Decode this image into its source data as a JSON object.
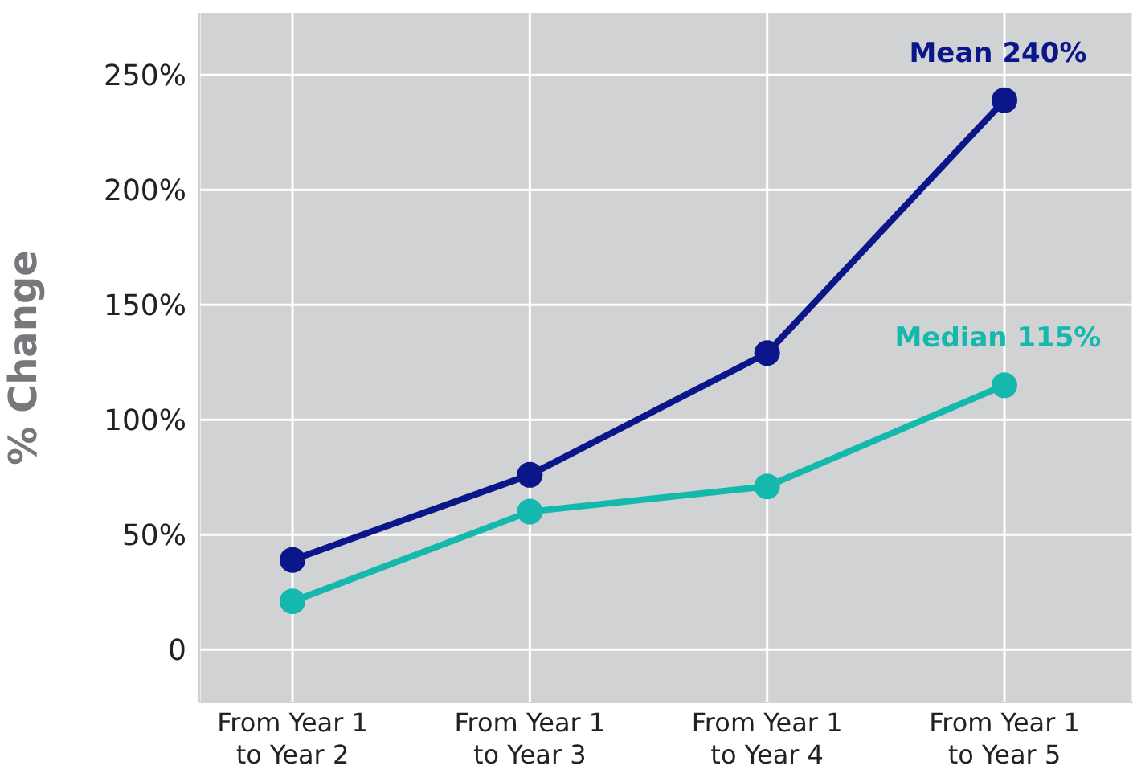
{
  "chart_data": {
    "type": "line",
    "ylabel": "% Change",
    "categories": [
      "From Year 1\nto Year 2",
      "From Year 1\nto Year 3",
      "From Year 1\nto Year 4",
      "From Year 1\nto Year 5"
    ],
    "series": [
      {
        "color": "#0a1689",
        "values": [
          39,
          76,
          129,
          239
        ]
      },
      {
        "color": "#14b8ad",
        "values": [
          21,
          60,
          71,
          115
        ]
      }
    ],
    "ylim": [
      -23,
      277
    ],
    "yticks": [
      {
        "value": 0,
        "label": "0"
      },
      {
        "value": 50,
        "label": "50%"
      },
      {
        "value": 100,
        "label": "100%"
      },
      {
        "value": 150,
        "label": "150%"
      },
      {
        "value": 200,
        "label": "200%"
      },
      {
        "value": 250,
        "label": "250%"
      }
    ],
    "annotations": [
      {
        "text": "Mean 240%",
        "x": "From Year 1\nto Year 5",
        "y": 239
      },
      {
        "text": "Median 115%",
        "x": "From Year 1\nto Year 5",
        "y": 115
      }
    ],
    "grid": true,
    "legend": false,
    "marker": "circle",
    "line_style": "solid"
  }
}
